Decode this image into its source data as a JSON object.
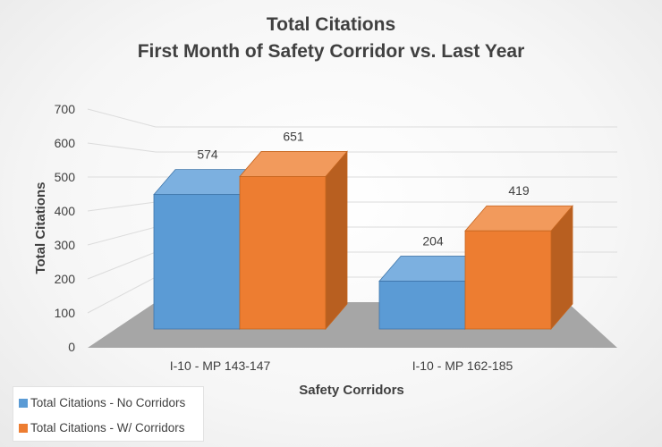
{
  "chart_data": {
    "type": "bar",
    "title": "Total Citations",
    "subtitle": "First Month of Safety Corridor vs. Last Year",
    "xlabel": "Safety Corridors",
    "ylabel": "Total Citations",
    "categories": [
      "I-10 - MP 143-147",
      "I-10 - MP 162-185"
    ],
    "series": [
      {
        "name": "Total Citations - No Corridors",
        "values": [
          574,
          204
        ],
        "color": "#5b9bd5"
      },
      {
        "name": "Total Citations - W/ Corridors",
        "values": [
          651,
          419
        ],
        "color": "#ed7d31"
      }
    ],
    "data_labels": [
      "574",
      "204",
      "651",
      "419"
    ],
    "yticks": [
      "0",
      "100",
      "200",
      "300",
      "400",
      "500",
      "600",
      "700"
    ],
    "ylim": [
      0,
      700
    ],
    "grid": true,
    "style": "3d-column",
    "legend_position": "bottom-left"
  }
}
